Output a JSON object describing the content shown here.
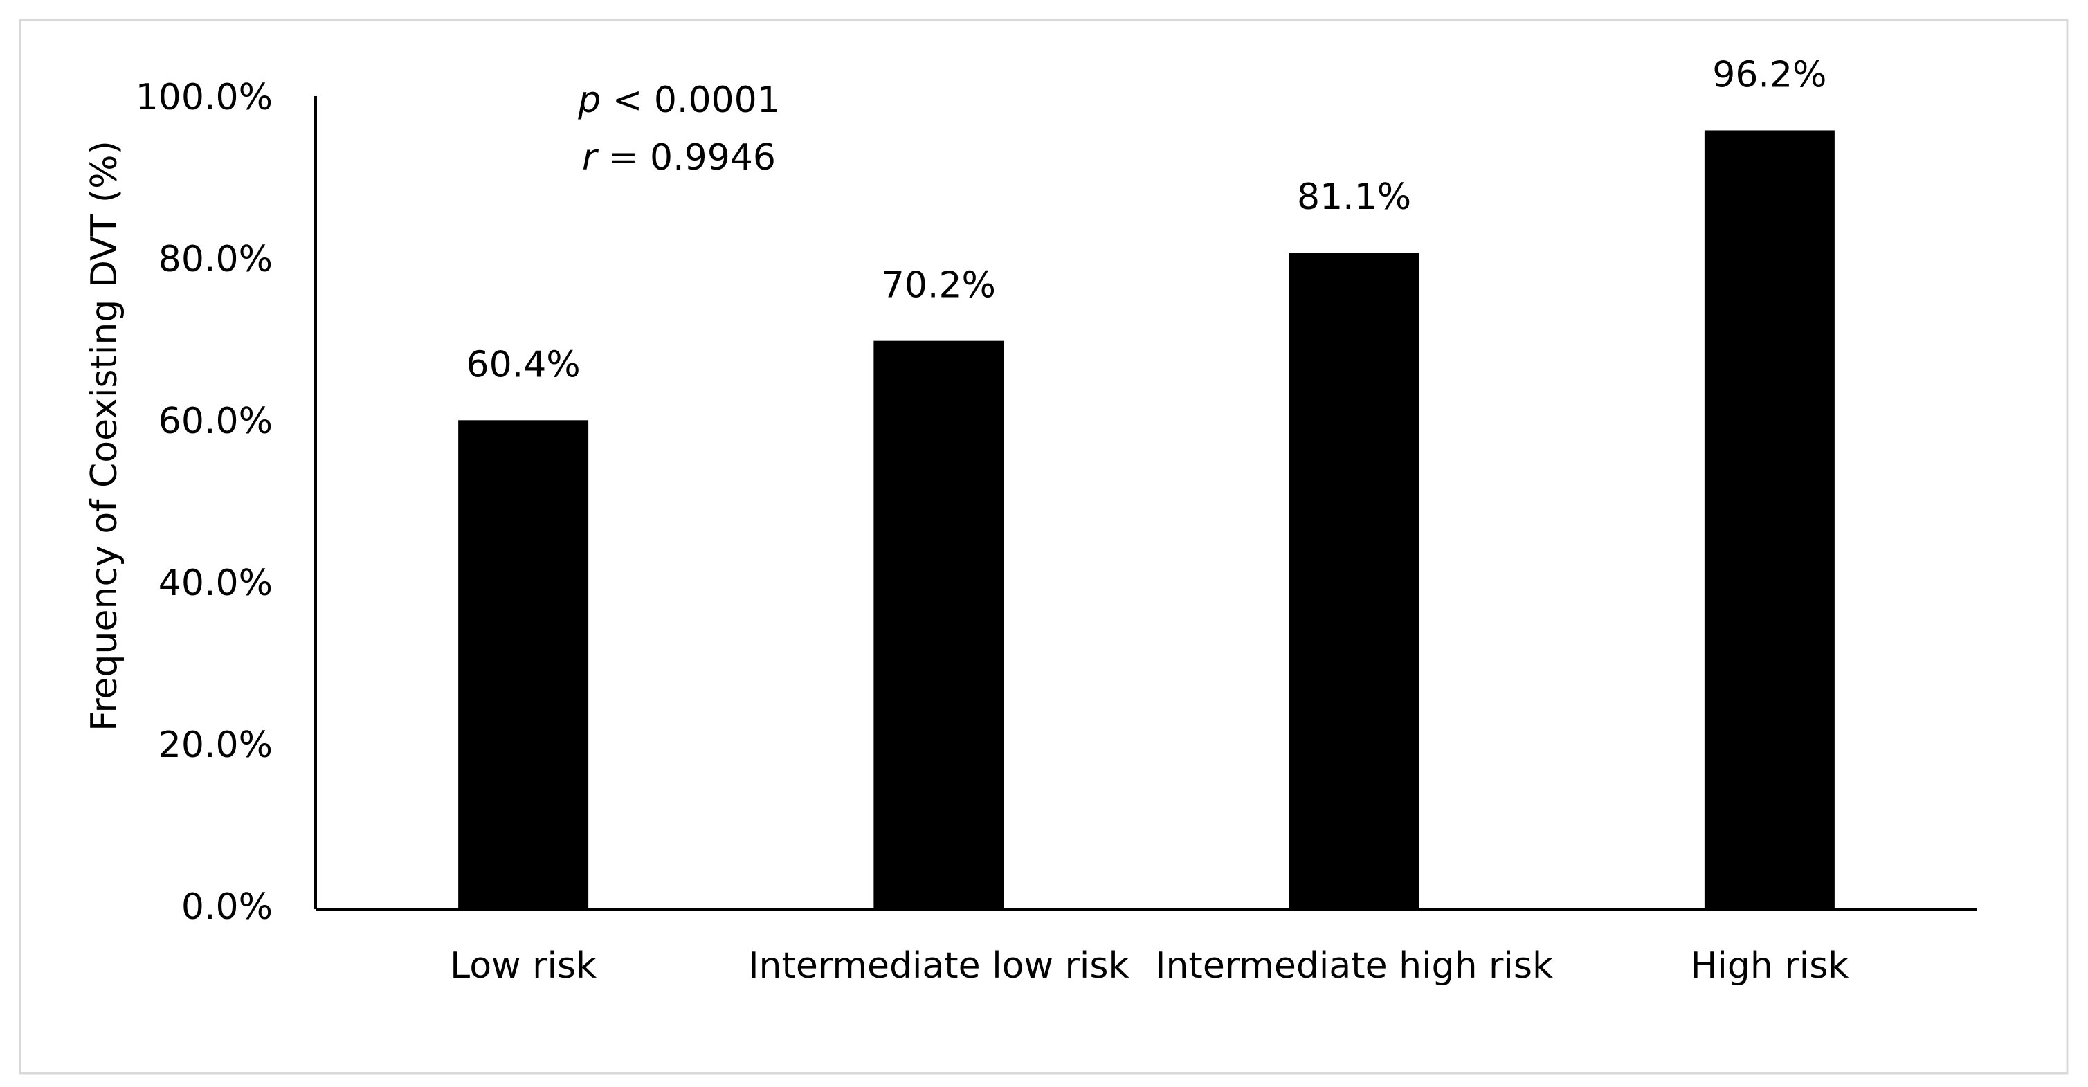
{
  "chart_data": {
    "type": "bar",
    "y_axis_label": "Frequency of Coexisting  DVT (%)",
    "annotations": [
      {
        "symbol": "p",
        "text": " < 0.0001"
      },
      {
        "symbol": "r",
        "text": " = 0.9946"
      }
    ],
    "categories": [
      "Low risk",
      "Intermediate low risk",
      "Intermediate high risk",
      "High risk"
    ],
    "values": [
      60.4,
      70.2,
      81.1,
      96.2
    ],
    "value_labels": [
      "60.4%",
      "70.2%",
      "81.1%",
      "96.2%"
    ],
    "color": "#000000",
    "ylim": [
      0,
      100
    ],
    "yticks": [
      {
        "value": 0,
        "label": "0.0%"
      },
      {
        "value": 20,
        "label": "20.0%"
      },
      {
        "value": 40,
        "label": "40.0%"
      },
      {
        "value": 60,
        "label": "60.0%"
      },
      {
        "value": 80,
        "label": "80.0%"
      },
      {
        "value": 100,
        "label": "100.0%"
      }
    ],
    "grid": false
  }
}
